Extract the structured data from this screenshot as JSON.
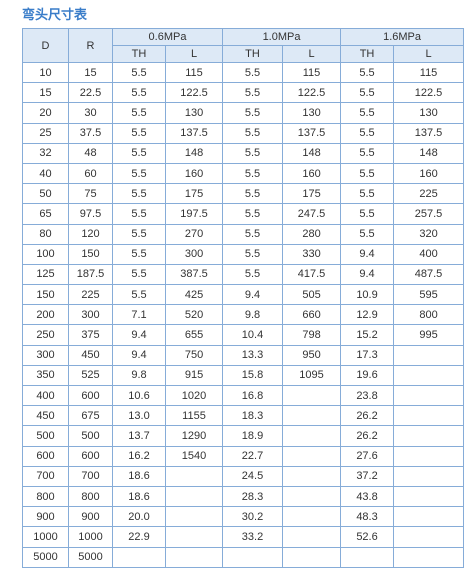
{
  "header": {
    "title": "弯头尺寸表"
  },
  "table": {
    "columns": {
      "d": "D",
      "r": "R",
      "groups": [
        {
          "name": "0.6MPa",
          "sub": [
            "TH",
            "L"
          ]
        },
        {
          "name": "1.0MPa",
          "sub": [
            "TH",
            "L"
          ]
        },
        {
          "name": "1.6MPa",
          "sub": [
            "TH",
            "L"
          ]
        }
      ]
    },
    "rows": [
      [
        "10",
        "15",
        "5.5",
        "115",
        "5.5",
        "115",
        "5.5",
        "115"
      ],
      [
        "15",
        "22.5",
        "5.5",
        "122.5",
        "5.5",
        "122.5",
        "5.5",
        "122.5"
      ],
      [
        "20",
        "30",
        "5.5",
        "130",
        "5.5",
        "130",
        "5.5",
        "130"
      ],
      [
        "25",
        "37.5",
        "5.5",
        "137.5",
        "5.5",
        "137.5",
        "5.5",
        "137.5"
      ],
      [
        "32",
        "48",
        "5.5",
        "148",
        "5.5",
        "148",
        "5.5",
        "148"
      ],
      [
        "40",
        "60",
        "5.5",
        "160",
        "5.5",
        "160",
        "5.5",
        "160"
      ],
      [
        "50",
        "75",
        "5.5",
        "175",
        "5.5",
        "175",
        "5.5",
        "225"
      ],
      [
        "65",
        "97.5",
        "5.5",
        "197.5",
        "5.5",
        "247.5",
        "5.5",
        "257.5"
      ],
      [
        "80",
        "120",
        "5.5",
        "270",
        "5.5",
        "280",
        "5.5",
        "320"
      ],
      [
        "100",
        "150",
        "5.5",
        "300",
        "5.5",
        "330",
        "9.4",
        "400"
      ],
      [
        "125",
        "187.5",
        "5.5",
        "387.5",
        "5.5",
        "417.5",
        "9.4",
        "487.5"
      ],
      [
        "150",
        "225",
        "5.5",
        "425",
        "9.4",
        "505",
        "10.9",
        "595"
      ],
      [
        "200",
        "300",
        "7.1",
        "520",
        "9.8",
        "660",
        "12.9",
        "800"
      ],
      [
        "250",
        "375",
        "9.4",
        "655",
        "10.4",
        "798",
        "15.2",
        "995"
      ],
      [
        "300",
        "450",
        "9.4",
        "750",
        "13.3",
        "950",
        "17.3",
        null
      ],
      [
        "350",
        "525",
        "9.8",
        "915",
        "15.8",
        "1095",
        "19.6",
        null
      ],
      [
        "400",
        "600",
        "10.6",
        "1020",
        "16.8",
        null,
        "23.8",
        null
      ],
      [
        "450",
        "675",
        "13.0",
        "1155",
        "18.3",
        null,
        "26.2",
        null
      ],
      [
        "500",
        "500",
        "13.7",
        "1290",
        "18.9",
        null,
        "26.2",
        null
      ],
      [
        "600",
        "600",
        "16.2",
        "1540",
        "22.7",
        null,
        "27.6",
        null
      ],
      [
        "700",
        "700",
        "18.6",
        null,
        "24.5",
        null,
        "37.2",
        null
      ],
      [
        "800",
        "800",
        "18.6",
        null,
        "28.3",
        null,
        "43.8",
        null
      ],
      [
        "900",
        "900",
        "20.0",
        null,
        "30.2",
        null,
        "48.3",
        null
      ],
      [
        "1000",
        "1000",
        "22.9",
        null,
        "33.2",
        null,
        "52.6",
        null
      ],
      [
        "5000",
        "5000",
        null,
        null,
        null,
        null,
        null,
        null
      ]
    ]
  }
}
